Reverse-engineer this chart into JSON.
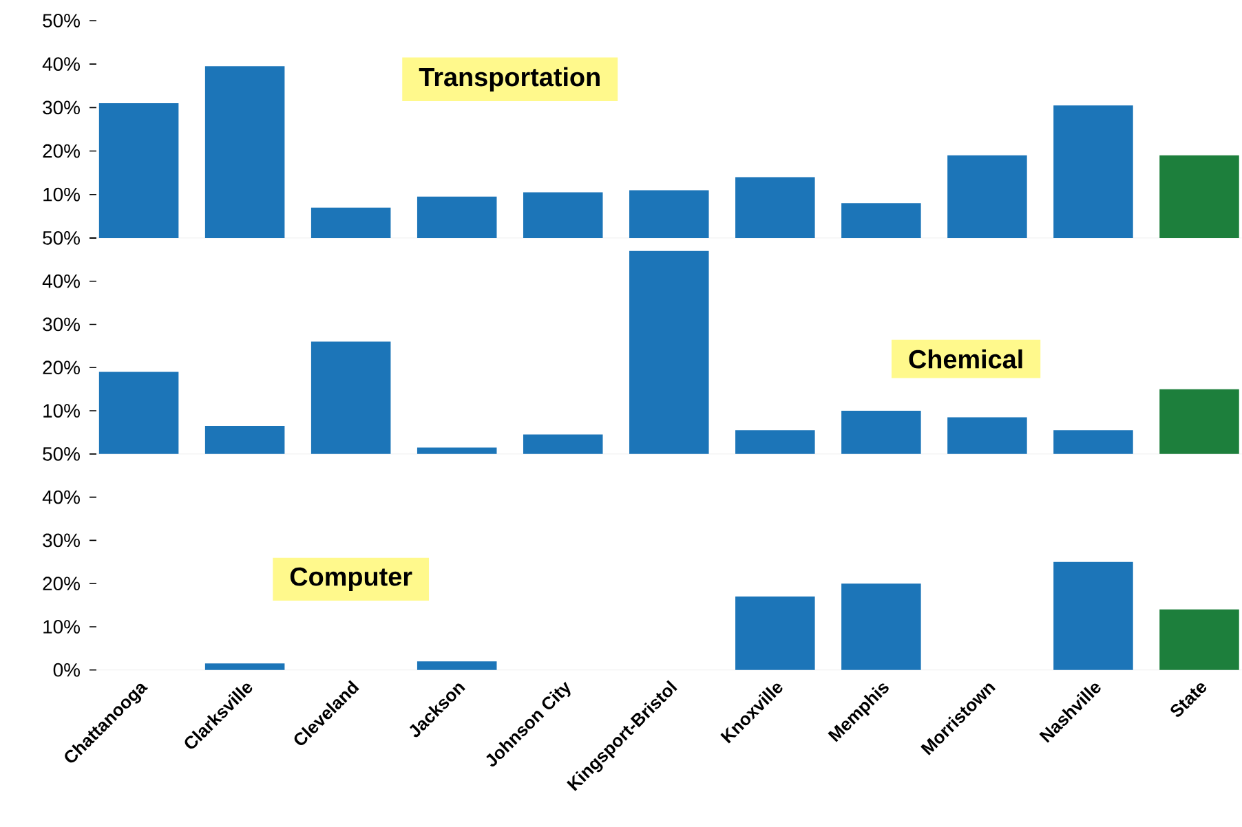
{
  "chart_data": [
    {
      "type": "bar",
      "title": "Transportation",
      "categories": [
        null,
        null,
        null,
        null,
        null,
        null,
        null,
        null,
        null,
        null,
        null
      ],
      "values": [
        31,
        39.5,
        7,
        9.5,
        10.5,
        11,
        14,
        8,
        19,
        30.5,
        19
      ],
      "colors": [
        "#1c75b8",
        "#1c75b8",
        "#1c75b8",
        "#1c75b8",
        "#1c75b8",
        "#1c75b8",
        "#1c75b8",
        "#1c75b8",
        "#1c75b8",
        "#1c75b8",
        "#1d7f3c"
      ],
      "ylim": [
        0,
        50
      ],
      "yticks": [
        {
          "value": 0,
          "label": null
        },
        {
          "value": 10,
          "label": "10%"
        },
        {
          "value": 20,
          "label": "20%"
        },
        {
          "value": 30,
          "label": "30%"
        },
        {
          "value": 40,
          "label": "40%"
        },
        {
          "value": 50,
          "label": "50%"
        }
      ],
      "tick_labels": "y"
    },
    {
      "type": "bar",
      "title": "Chemical",
      "categories": [
        null,
        null,
        null,
        null,
        null,
        null,
        null,
        null,
        null,
        null,
        null
      ],
      "values": [
        19,
        6.5,
        26,
        1.5,
        4.5,
        47,
        5.5,
        10,
        8.5,
        5.5,
        15
      ],
      "colors": [
        "#1c75b8",
        "#1c75b8",
        "#1c75b8",
        "#1c75b8",
        "#1c75b8",
        "#1c75b8",
        "#1c75b8",
        "#1c75b8",
        "#1c75b8",
        "#1c75b8",
        "#1d7f3c"
      ],
      "ylim": [
        0,
        50
      ],
      "yticks": [
        {
          "value": 0,
          "label": null
        },
        {
          "value": 10,
          "label": "10%"
        },
        {
          "value": 20,
          "label": "20%"
        },
        {
          "value": 30,
          "label": "30%"
        },
        {
          "value": 40,
          "label": "40%"
        },
        {
          "value": 50,
          "label": "50%"
        }
      ],
      "tick_labels": "y"
    },
    {
      "type": "bar",
      "title": "Computer",
      "categories": [
        "Chattanooga",
        "Clarksville",
        "Cleveland",
        "Jackson",
        "Johnson City",
        "Kingsport-Bristol",
        "Knoxville",
        "Memphis",
        "Morristown",
        "Nashville",
        "State"
      ],
      "values": [
        0,
        1.5,
        0,
        2,
        0,
        0,
        17,
        20,
        0,
        25,
        14
      ],
      "colors": [
        "#1c75b8",
        "#1c75b8",
        "#1c75b8",
        "#1c75b8",
        "#1c75b8",
        "#1c75b8",
        "#1c75b8",
        "#1c75b8",
        "#1c75b8",
        "#1c75b8",
        "#1d7f3c"
      ],
      "ylim": [
        0,
        50
      ],
      "yticks": [
        {
          "value": 0,
          "label": "0%"
        },
        {
          "value": 10,
          "label": "10%"
        },
        {
          "value": 20,
          "label": "20%"
        },
        {
          "value": 30,
          "label": "30%"
        },
        {
          "value": 40,
          "label": "40%"
        },
        {
          "value": 50,
          "label": "50%"
        }
      ]
    }
  ]
}
